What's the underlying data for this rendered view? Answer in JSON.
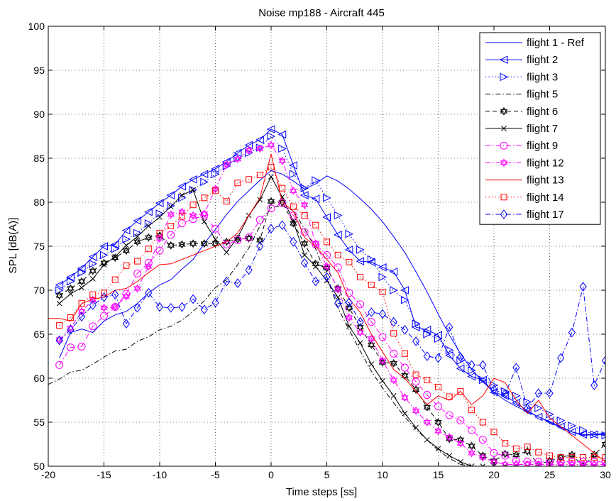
{
  "chart_data": {
    "type": "line",
    "title": "Noise mp188 - Aircraft 445",
    "xlabel": "Time steps [ss]",
    "ylabel": "SPL [dB(A)]",
    "xlim": [
      -20,
      30
    ],
    "ylim": [
      50,
      100
    ],
    "xticks": [
      -20,
      -15,
      -10,
      -5,
      0,
      5,
      10,
      15,
      20,
      25,
      30
    ],
    "yticks": [
      50,
      55,
      60,
      65,
      70,
      75,
      80,
      85,
      90,
      95,
      100
    ],
    "grid": "dotted",
    "legend_position": "top-right",
    "series": [
      {
        "name": "flight 1 - Ref",
        "color": "#0000ff",
        "dash": "solid",
        "marker": "none",
        "x": [
          -19,
          -18,
          -17,
          -16,
          -15,
          -14,
          -13,
          -12,
          -11,
          -10,
          -9,
          -8,
          -7,
          -6,
          -5,
          -4,
          -3,
          -2,
          -1,
          0,
          1,
          2,
          3,
          4,
          5,
          6,
          7,
          8,
          9,
          10,
          11,
          12,
          13,
          14,
          15,
          16,
          17,
          18,
          19,
          20,
          21,
          22,
          23,
          24,
          25,
          26,
          27,
          28,
          29,
          30
        ],
        "y": [
          62.3,
          65.2,
          65.6,
          65.2,
          66.5,
          67.2,
          67.6,
          68.5,
          69.7,
          70.6,
          71.2,
          72.4,
          73.5,
          75.3,
          76.9,
          78.6,
          80.1,
          81.3,
          82.5,
          83.6,
          83.2,
          82.4,
          81.5,
          82.1,
          83.0,
          82.4,
          81.5,
          80.4,
          79.2,
          77.8,
          76.1,
          74.3,
          72.1,
          69.8,
          67.3,
          64.9,
          62.8,
          61.0,
          59.6,
          58.4,
          57.5,
          56.8,
          56.2,
          55.6,
          55.0,
          54.4,
          53.9,
          53.5,
          53.6,
          53.8
        ]
      },
      {
        "name": "flight 2",
        "color": "#0000ff",
        "dash": "solid",
        "marker": "tri-left",
        "x": [
          -19,
          -18,
          -17,
          -16,
          -15,
          -14,
          -13,
          -12,
          -11,
          -10,
          -9,
          -8,
          -7,
          -6,
          -5,
          -4,
          -3,
          -2,
          -1,
          0,
          1,
          2,
          3,
          4,
          5,
          6,
          7,
          8,
          9,
          10,
          11,
          12,
          13,
          14,
          15,
          16,
          17,
          18,
          19,
          20,
          21,
          22,
          23,
          24,
          25,
          26,
          27,
          28,
          29,
          30
        ],
        "y": [
          70.6,
          71.5,
          72.5,
          73.8,
          75.0,
          75.2,
          76.8,
          77.9,
          78.9,
          79.9,
          80.8,
          81.8,
          82.6,
          83.2,
          83.8,
          84.6,
          85.6,
          86.5,
          87.1,
          88.3,
          87.7,
          84.2,
          80.8,
          80.4,
          78.3,
          76.3,
          74.6,
          73.3,
          73.2,
          72.6,
          72.1,
          70.0,
          65.8,
          65.5,
          64.9,
          62.6,
          61.1,
          60.2,
          59.8,
          58.4,
          58.0,
          57.2,
          56.3,
          55.6,
          55.1,
          54.5,
          53.9,
          53.6,
          53.6,
          53.6
        ]
      },
      {
        "name": "flight 3",
        "color": "#0000ff",
        "dash": "dotted",
        "marker": "tri-right",
        "x": [
          -19,
          -18,
          -17,
          -16,
          -15,
          -14,
          -13,
          -12,
          -11,
          -10,
          -9,
          -8,
          -7,
          -6,
          -5,
          -4,
          -3,
          -2,
          -1,
          0,
          1,
          2,
          3,
          4,
          5,
          6,
          7,
          8,
          9,
          10,
          11,
          12,
          13,
          14,
          15,
          16,
          17,
          18,
          19,
          20,
          21,
          22,
          23,
          24,
          25,
          26,
          27,
          28,
          29,
          30
        ],
        "y": [
          70.0,
          71.0,
          72.0,
          73.0,
          74.0,
          74.7,
          75.8,
          76.5,
          77.6,
          78.7,
          79.6,
          80.5,
          81.4,
          82.3,
          83.2,
          84.1,
          85.0,
          85.6,
          86.2,
          87.5,
          86.1,
          83.2,
          81.6,
          82.5,
          80.5,
          78.5,
          76.4,
          74.6,
          73.5,
          71.5,
          70.0,
          68.9,
          66.2,
          65.0,
          64.5,
          63.2,
          62.0,
          60.9,
          59.8,
          59.2,
          58.5,
          58.0,
          57.3,
          56.6,
          55.9,
          55.2,
          54.6,
          54.1,
          53.6,
          53.5
        ]
      },
      {
        "name": "flight 5",
        "color": "#000000",
        "dash": "dashdot",
        "marker": "none",
        "x": [
          -20,
          -19,
          -18,
          -17,
          -16,
          -15,
          -14,
          -13,
          -12,
          -11,
          -10,
          -9,
          -8,
          -7,
          -6,
          -5,
          -4,
          -3,
          -2,
          -1,
          0,
          1,
          2,
          3,
          4,
          5,
          6,
          7,
          8,
          9,
          10,
          11,
          12,
          13,
          14,
          15,
          16,
          17,
          18,
          19,
          20,
          21,
          22,
          23,
          24,
          25,
          26,
          27,
          28,
          29,
          30
        ],
        "y": [
          59.3,
          59.9,
          60.7,
          60.9,
          61.6,
          62.4,
          63.1,
          63.3,
          64.2,
          64.7,
          65.5,
          65.9,
          66.6,
          67.6,
          68.8,
          70.3,
          71.2,
          72.9,
          74.8,
          77.3,
          79.4,
          79.6,
          79.0,
          77.0,
          74.7,
          71.5,
          68.0,
          65.5,
          63.1,
          60.8,
          58.9,
          57.2,
          55.6,
          54.2,
          53.0,
          51.8,
          50.9,
          50.2,
          50.0,
          50.0,
          50.0,
          50.0,
          50.0,
          50.0,
          50.0,
          50.0,
          50.0,
          50.0,
          50.0,
          50.0,
          50.0
        ]
      },
      {
        "name": "flight 6",
        "color": "#000000",
        "dash": "dashed",
        "marker": "star",
        "x": [
          -19,
          -18,
          -17,
          -16,
          -15,
          -14,
          -13,
          -12,
          -11,
          -10,
          -9,
          -8,
          -7,
          -6,
          -5,
          -4,
          -3,
          -2,
          -1,
          0,
          1,
          2,
          3,
          4,
          5,
          6,
          7,
          8,
          9,
          10,
          11,
          12,
          13,
          14,
          15,
          16,
          17,
          18,
          19,
          20,
          21,
          22,
          23,
          24,
          25,
          26,
          27,
          28,
          29,
          30
        ],
        "y": [
          69.4,
          70.2,
          71.0,
          72.2,
          73.1,
          73.7,
          74.5,
          75.5,
          76.0,
          76.2,
          75.1,
          75.2,
          75.3,
          75.3,
          75.3,
          75.5,
          75.8,
          75.9,
          75.7,
          80.1,
          80.0,
          77.6,
          75.3,
          73.0,
          72.5,
          70.2,
          68.0,
          65.8,
          63.8,
          61.8,
          61.7,
          60.3,
          58.7,
          56.7,
          55.0,
          53.1,
          53.0,
          52.3,
          51.2,
          50.6,
          51.4,
          51.3,
          51.7,
          50.2,
          50.6,
          51.0,
          51.3,
          50.0,
          51.3,
          52.5
        ]
      },
      {
        "name": "flight 7",
        "color": "#000000",
        "dash": "solid",
        "marker": "x",
        "x": [
          -19,
          -18,
          -17,
          -16,
          -15,
          -14,
          -13,
          -12,
          -11,
          -10,
          -9,
          -8,
          -7,
          -6,
          -5,
          -4,
          -3,
          -2,
          -1,
          0,
          1,
          2,
          3,
          4,
          5,
          6,
          7,
          8,
          9,
          10,
          11,
          12,
          13,
          14,
          15,
          16,
          17,
          18,
          19,
          20,
          21,
          22,
          23,
          24,
          25,
          26,
          27,
          28,
          29,
          30
        ],
        "y": [
          68.5,
          69.6,
          70.3,
          71.3,
          72.9,
          73.8,
          75.1,
          76.1,
          77.3,
          78.3,
          79.5,
          80.8,
          81.4,
          77.8,
          75.8,
          74.3,
          76.0,
          78.5,
          80.3,
          82.9,
          80.6,
          77.8,
          74.0,
          72.7,
          71.1,
          69.2,
          65.9,
          64.0,
          61.6,
          59.7,
          58.0,
          56.0,
          54.4,
          53.0,
          52.0,
          51.2,
          50.5,
          50.0,
          50.0,
          50.0,
          50.0,
          50.0,
          50.0,
          50.0,
          50.0,
          50.0,
          50.0,
          50.0,
          50.0,
          50.0
        ]
      },
      {
        "name": "flight 9",
        "color": "#ff00ff",
        "dash": "dashdot",
        "marker": "circle",
        "x": [
          -19,
          -18,
          -17,
          -16,
          -15,
          -14,
          -13,
          -12,
          -11,
          -10,
          -9,
          -8,
          -7,
          -6,
          -5,
          -4,
          -3,
          -2,
          -1,
          0,
          1,
          2,
          3,
          4,
          5,
          6,
          7,
          8,
          9,
          10,
          11,
          12,
          13,
          14,
          15,
          16,
          17,
          18,
          19,
          20,
          21,
          22,
          23,
          24,
          25,
          26,
          27,
          28,
          29,
          30
        ],
        "y": [
          61.5,
          63.5,
          63.6,
          65.9,
          67.1,
          68.1,
          69.6,
          71.9,
          73.1,
          74.5,
          76.3,
          77.6,
          78.1,
          78.5,
          77.0,
          75.2,
          75.7,
          76.0,
          78.0,
          79.3,
          79.9,
          78.5,
          76.6,
          75.2,
          74.0,
          72.6,
          69.7,
          68.4,
          66.4,
          64.7,
          62.8,
          61.2,
          59.6,
          58.1,
          56.8,
          55.8,
          55.2,
          54.1,
          53.0,
          51.5,
          51.2,
          50.6,
          50.5,
          50.5,
          50.5,
          50.5,
          50.5,
          50.5,
          50.5,
          50.5
        ]
      },
      {
        "name": "flight 12",
        "color": "#ff00ff",
        "dash": "dashdot",
        "marker": "star",
        "x": [
          -19,
          -18,
          -17,
          -16,
          -15,
          -14,
          -13,
          -12,
          -11,
          -10,
          -9,
          -8,
          -7,
          -6,
          -5,
          -4,
          -3,
          -2,
          -1,
          0,
          1,
          2,
          3,
          4,
          5,
          6,
          7,
          8,
          9,
          10,
          11,
          12,
          13,
          14,
          15,
          16,
          17,
          18,
          19,
          20,
          21,
          22,
          23,
          24,
          25,
          26,
          27,
          28,
          29,
          30
        ],
        "y": [
          64.4,
          65.7,
          67.6,
          68.9,
          68.0,
          68.1,
          69.3,
          70.2,
          72.7,
          75.9,
          78.6,
          78.9,
          78.5,
          78.7,
          81.5,
          84.3,
          84.9,
          85.9,
          86.1,
          86.5,
          84.7,
          81.3,
          79.7,
          75.3,
          72.7,
          70.1,
          66.9,
          65.2,
          64.5,
          62.0,
          59.8,
          57.8,
          56.3,
          55.0,
          54.0,
          53.3,
          52.6,
          51.5,
          51.0,
          50.5,
          50.2,
          50.2,
          50.2,
          50.2,
          50.2,
          50.2,
          50.2,
          50.2,
          50.2,
          50.2
        ]
      },
      {
        "name": "flight 13",
        "color": "#ff0000",
        "dash": "solid",
        "marker": "none",
        "x": [
          -20,
          -19,
          -18,
          -17,
          -16,
          -15,
          -14,
          -13,
          -12,
          -11,
          -10,
          -9,
          -8,
          -7,
          -6,
          -5,
          -4,
          -3,
          -2,
          -1,
          0,
          1,
          2,
          3,
          4,
          5,
          6,
          7,
          8,
          9,
          10,
          11,
          12,
          13,
          14,
          15,
          16,
          17,
          18,
          19,
          20,
          21,
          22,
          23,
          24,
          25,
          26,
          27,
          28,
          29,
          30
        ],
        "y": [
          66.8,
          66.8,
          66.5,
          68.5,
          69.0,
          69.2,
          70.0,
          70.2,
          71.0,
          72.0,
          72.9,
          73.0,
          73.5,
          74.0,
          74.5,
          75.0,
          75.5,
          76.5,
          78.5,
          80.5,
          85.5,
          80.0,
          79.0,
          76.0,
          75.0,
          73.5,
          72.0,
          69.0,
          67.5,
          65.0,
          63.0,
          61.0,
          60.0,
          58.5,
          57.0,
          58.0,
          57.5,
          58.5,
          57.0,
          58.0,
          60.0,
          59.5,
          57.5,
          56.0,
          57.5,
          55.5,
          54.5,
          53.5,
          52.5,
          51.5,
          50.5
        ]
      },
      {
        "name": "flight 14",
        "color": "#ff0000",
        "dash": "dotted",
        "marker": "square",
        "x": [
          -19,
          -18,
          -17,
          -16,
          -15,
          -14,
          -13,
          -12,
          -11,
          -10,
          -9,
          -8,
          -7,
          -6,
          -5,
          -4,
          -3,
          -2,
          -1,
          0,
          1,
          2,
          3,
          4,
          5,
          6,
          7,
          8,
          9,
          10,
          11,
          12,
          13,
          14,
          15,
          16,
          17,
          18,
          19,
          20,
          21,
          22,
          23,
          24,
          25,
          26,
          27,
          28,
          29,
          30
        ],
        "y": [
          66.0,
          66.9,
          68.5,
          69.5,
          69.7,
          71.2,
          72.8,
          73.3,
          74.7,
          76.5,
          77.3,
          78.4,
          79.7,
          80.5,
          81.3,
          80.1,
          82.2,
          82.6,
          83.1,
          84.0,
          81.6,
          79.5,
          78.5,
          77.4,
          75.5,
          74.0,
          73.2,
          71.5,
          70.6,
          69.8,
          65.1,
          62.8,
          60.4,
          59.8,
          59.0,
          57.9,
          58.5,
          56.4,
          55.0,
          53.9,
          52.6,
          52.0,
          52.2,
          51.6,
          51.2,
          51.0,
          51.0,
          51.0,
          51.0,
          51.0
        ]
      },
      {
        "name": "flight 17",
        "color": "#0000ff",
        "dash": "dashdot",
        "marker": "diamond",
        "x": [
          -19,
          -18,
          -17,
          -16,
          -15,
          -14,
          -13,
          -12,
          -11,
          -10,
          -9,
          -8,
          -7,
          -6,
          -5,
          -4,
          -3,
          -2,
          -1,
          0,
          1,
          2,
          3,
          4,
          5,
          6,
          7,
          8,
          9,
          10,
          11,
          12,
          13,
          14,
          15,
          16,
          17,
          18,
          19,
          20,
          21,
          22,
          23,
          24,
          25,
          26,
          27,
          28,
          29,
          30
        ],
        "y": [
          64.3,
          65.5,
          67.0,
          68.3,
          69.2,
          69.5,
          66.2,
          68.0,
          69.7,
          68.1,
          68.0,
          68.1,
          69.0,
          67.8,
          68.6,
          71.0,
          70.8,
          72.3,
          75.0,
          77.0,
          77.4,
          75.5,
          73.1,
          71.0,
          71.5,
          68.5,
          68.6,
          66.4,
          67.5,
          67.3,
          66.4,
          65.5,
          64.2,
          62.5,
          62.3,
          65.8,
          62.4,
          61.5,
          61.5,
          58.7,
          58.2,
          61.2,
          56.6,
          58.3,
          58.3,
          62.3,
          65.2,
          70.4,
          59.2,
          62.0
        ]
      }
    ]
  }
}
